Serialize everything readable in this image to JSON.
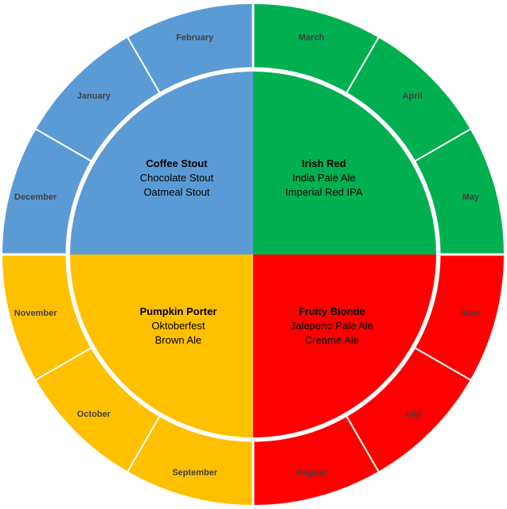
{
  "colors": {
    "winter": "#5B9BD5",
    "spring": "#00B050",
    "summer": "#FF0000",
    "fall": "#FFC000",
    "divider": "#FFFFFF"
  },
  "seasons": [
    {
      "id": "winter",
      "color": "#5B9BD5",
      "beers": [
        "Coffee Stout",
        "Chocolate Stout",
        "Oatmeal Stout"
      ],
      "months": [
        "December",
        "January",
        "February"
      ]
    },
    {
      "id": "spring",
      "color": "#00B050",
      "beers": [
        "Irish Red",
        "India Pale Ale",
        "Imperial Red IPA"
      ],
      "months": [
        "March",
        "April",
        "May"
      ]
    },
    {
      "id": "summer",
      "color": "#FF0000",
      "beers": [
        "Fruity Blonde",
        "Jalepeno Pale Ale",
        "Creame Ale"
      ],
      "months": [
        "June",
        "July",
        "August"
      ]
    },
    {
      "id": "fall",
      "color": "#FFC000",
      "beers": [
        "Pumpkin Porter",
        "Oktoberfest",
        "Brown Ale"
      ],
      "months": [
        "September",
        "October",
        "November"
      ]
    }
  ]
}
